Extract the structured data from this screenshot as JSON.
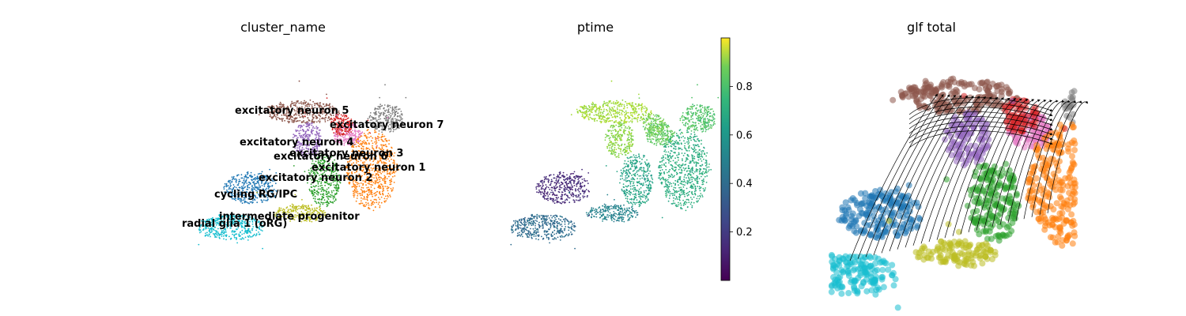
{
  "chart_data": [
    {
      "type": "scatter",
      "title": "cluster_name",
      "clusters": [
        {
          "name": "excitatory neuron 5",
          "color": "#8c564b"
        },
        {
          "name": "excitatory neuron 7",
          "color": "#7f7f7f"
        },
        {
          "name": "excitatory neuron 4",
          "color": "#9467bd"
        },
        {
          "name": "excitatory neuron 3",
          "color": "#e377c2"
        },
        {
          "name": "excitatory neuron 6",
          "color": "#d62728"
        },
        {
          "name": "excitatory neuron 1",
          "color": "#ff7f0e"
        },
        {
          "name": "excitatory neuron 2",
          "color": "#2ca02c"
        },
        {
          "name": "cycling RG/IPC",
          "color": "#1f77b4"
        },
        {
          "name": "intermediate progenitor",
          "color": "#bcbd22"
        },
        {
          "name": "radial glia 1 (oRG)",
          "color": "#17becf"
        }
      ],
      "legend": "on data"
    },
    {
      "type": "scatter",
      "title": "ptime",
      "colorbar": {
        "colormap": "viridis",
        "range": [
          0.0,
          1.0
        ],
        "ticks": [
          "0.2",
          "0.4",
          "0.6",
          "0.8"
        ]
      }
    },
    {
      "type": "scatter",
      "title": "glf total",
      "overlay": "streamlines with arrows",
      "stream_color": "#000000"
    }
  ]
}
